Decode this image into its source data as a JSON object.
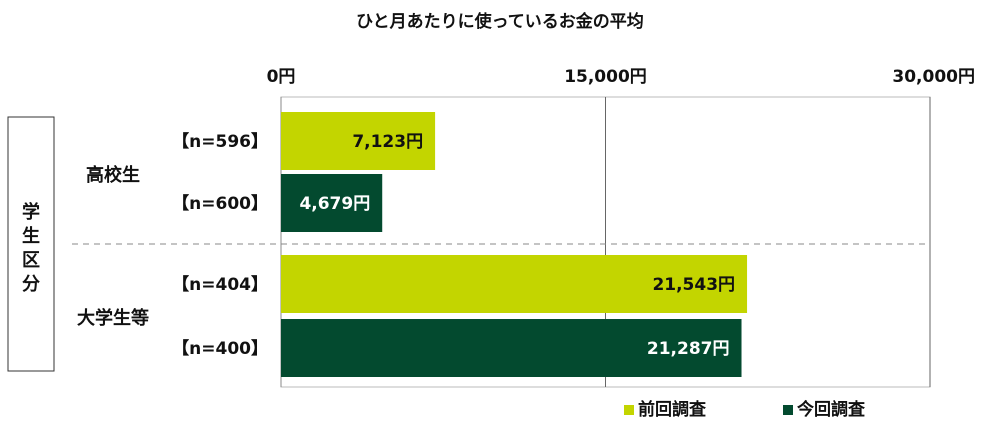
{
  "chart_data": {
    "type": "bar",
    "orientation": "horizontal",
    "title": "ひと月あたりに使っているお金の平均",
    "xlim": [
      0,
      30000
    ],
    "ticks": [
      {
        "value": 0,
        "label": "0円"
      },
      {
        "value": 15000,
        "label": "15,000円"
      },
      {
        "value": 30000,
        "label": "30,000円"
      }
    ],
    "category_group_label": "学生区分",
    "groups": [
      {
        "label": "高校生",
        "bars": [
          {
            "series": "前回調査",
            "n_label": "【n=596】",
            "value": 7123,
            "value_label": "7,123円"
          },
          {
            "series": "今回調査",
            "n_label": "【n=600】",
            "value": 4679,
            "value_label": "4,679円"
          }
        ]
      },
      {
        "label": "大学生等",
        "bars": [
          {
            "series": "前回調査",
            "n_label": "【n=404】",
            "value": 21543,
            "value_label": "21,543円"
          },
          {
            "series": "今回調査",
            "n_label": "【n=400】",
            "value": 21287,
            "value_label": "21,287円"
          }
        ]
      }
    ],
    "series": [
      {
        "name": "前回調査",
        "color": "#c3d500"
      },
      {
        "name": "今回調査",
        "color": "#034a2f"
      }
    ],
    "legend_position": "bottom-right",
    "grid": true
  }
}
